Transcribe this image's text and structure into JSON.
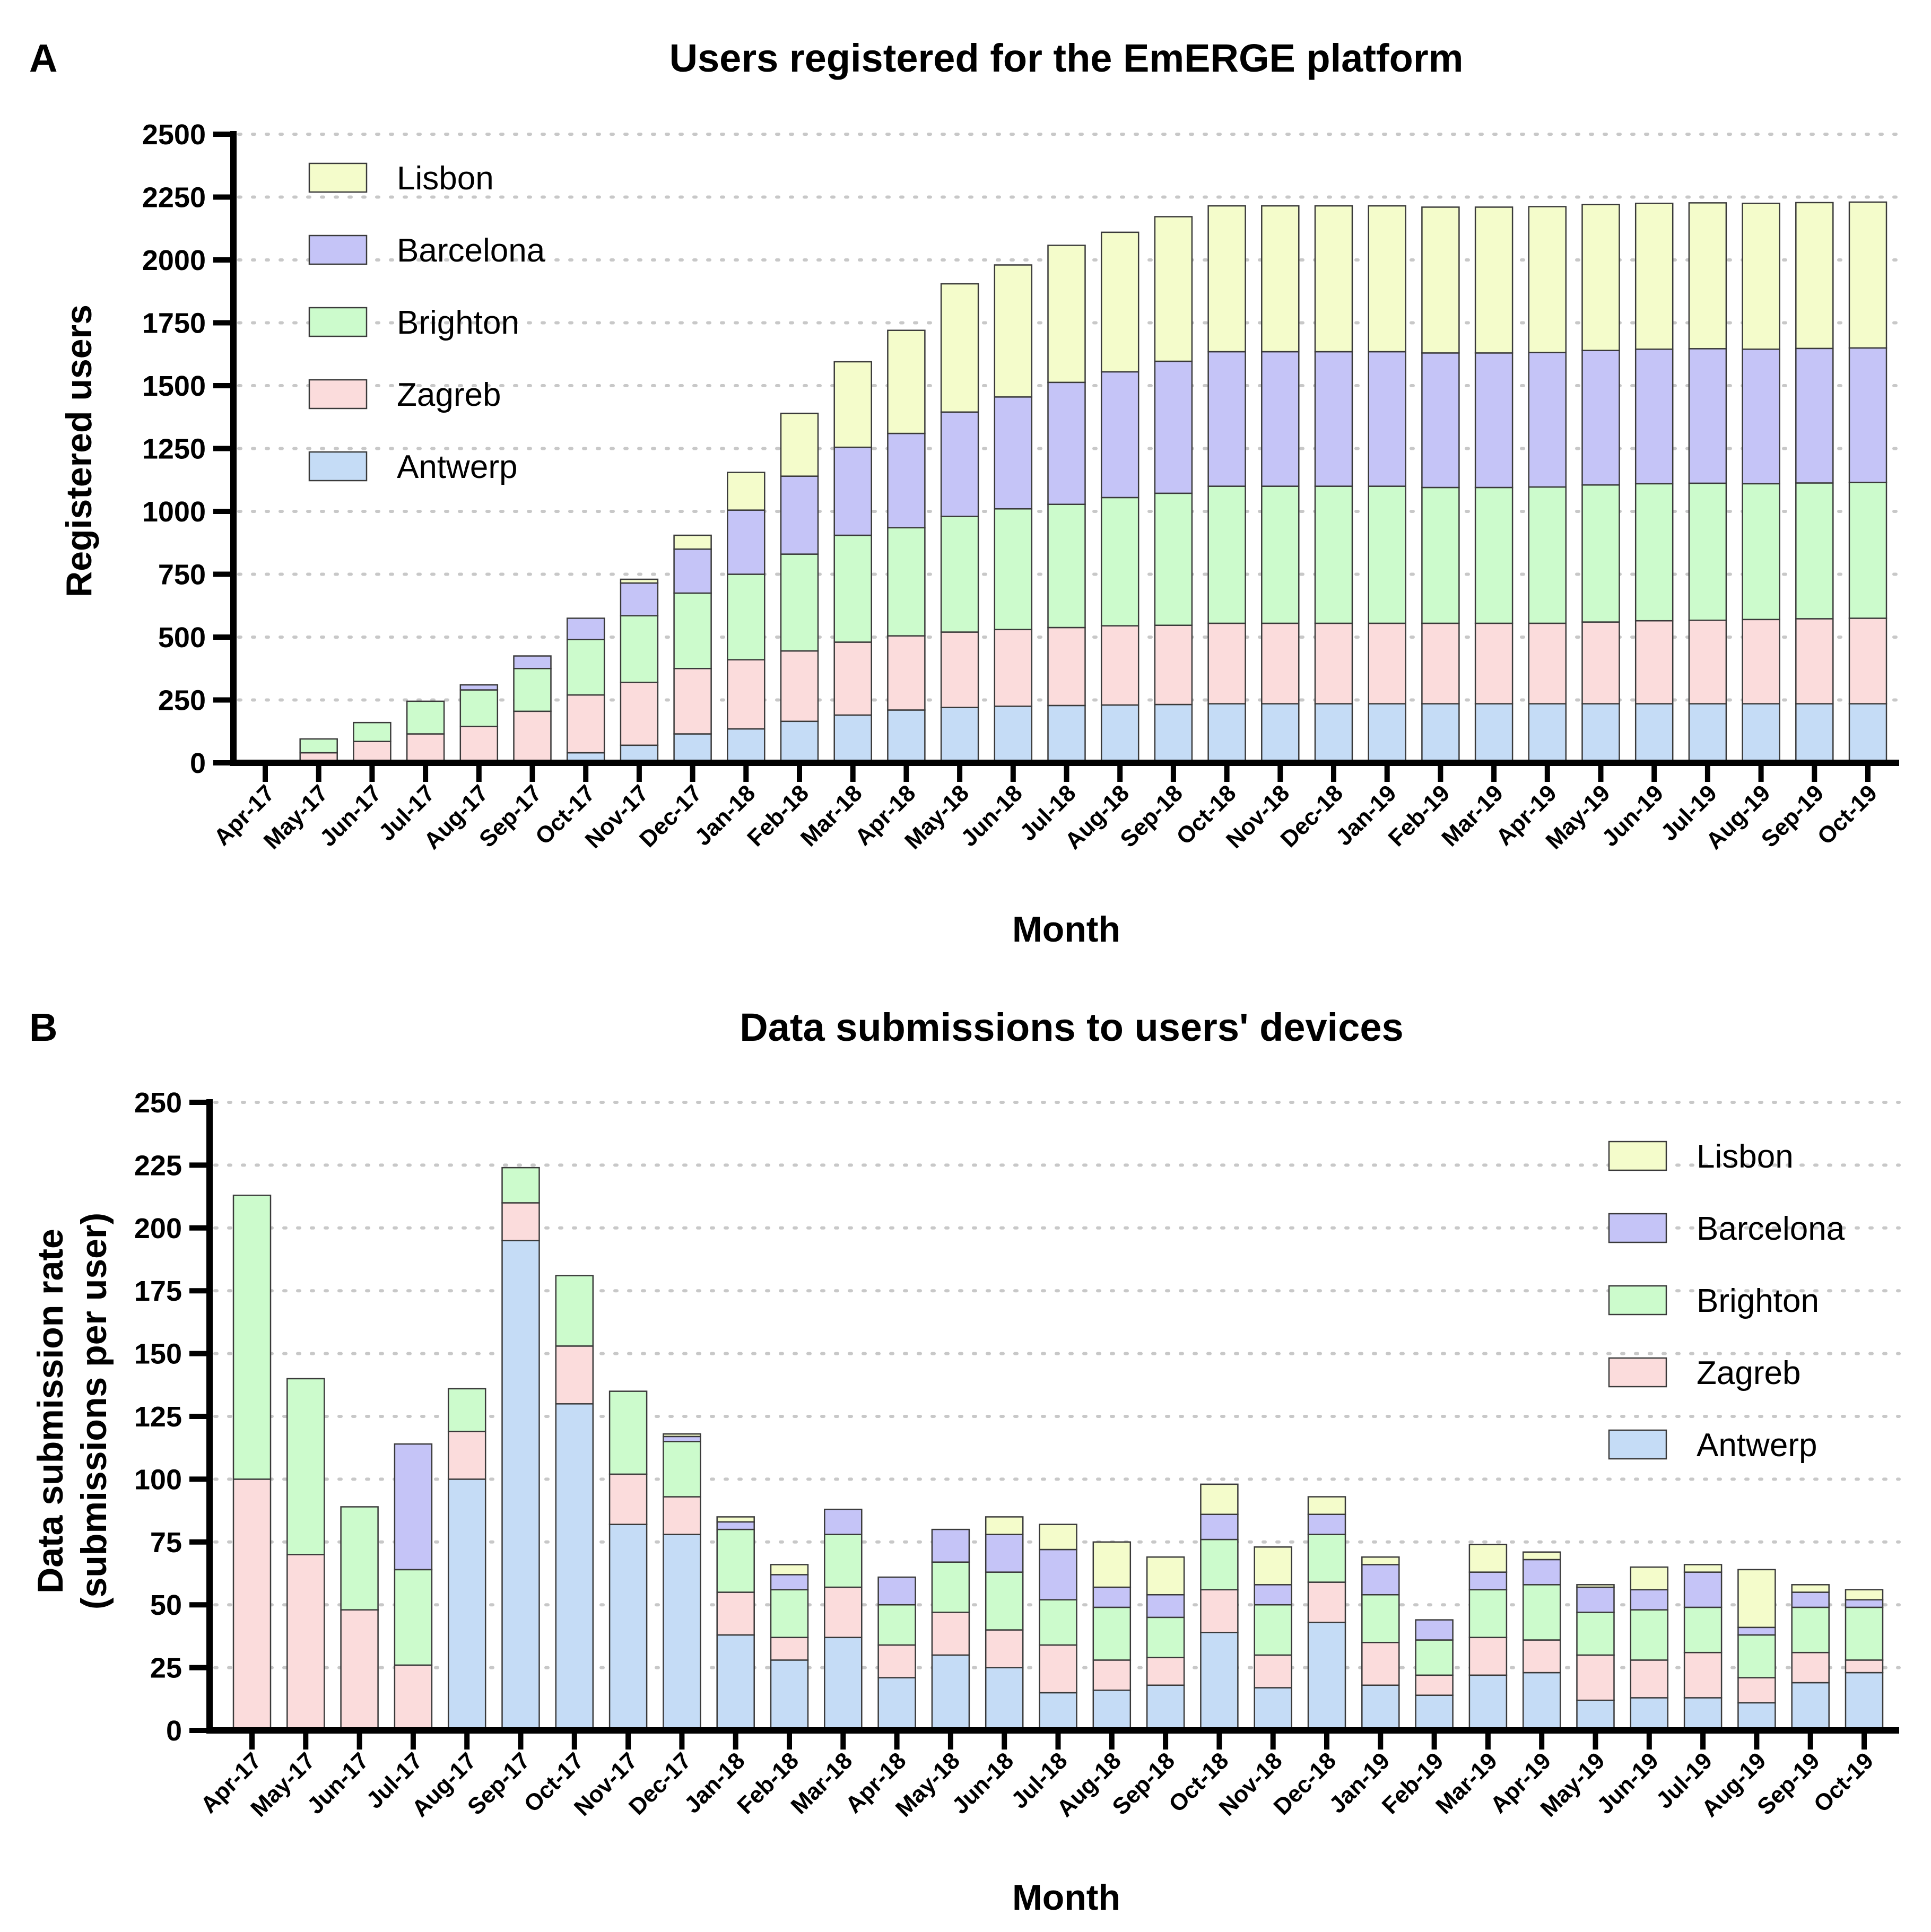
{
  "chart_data": [
    {
      "panel": "A",
      "type": "bar",
      "stacked": true,
      "title": "Users registered for the EmERGE platform",
      "xlabel": "Month",
      "ylabel": "Registered users",
      "ylim": [
        0,
        2500
      ],
      "yticks": [
        0,
        250,
        500,
        750,
        1000,
        1250,
        1500,
        1750,
        2000,
        2250,
        2500
      ],
      "legend_position": "top-left",
      "categories": [
        "Apr-17",
        "May-17",
        "Jun-17",
        "Jul-17",
        "Aug-17",
        "Sep-17",
        "Oct-17",
        "Nov-17",
        "Dec-17",
        "Jan-18",
        "Feb-18",
        "Mar-18",
        "Apr-18",
        "May-18",
        "Jun-18",
        "Jul-18",
        "Aug-18",
        "Sep-18",
        "Oct-18",
        "Nov-18",
        "Dec-18",
        "Jan-19",
        "Feb-19",
        "Mar-19",
        "Apr-19",
        "May-19",
        "Jun-19",
        "Jul-19",
        "Aug-19",
        "Sep-19",
        "Oct-19"
      ],
      "series": [
        {
          "name": "Antwerp",
          "color": "#c5dcf6",
          "values": [
            0,
            0,
            0,
            0,
            0,
            10,
            40,
            70,
            115,
            135,
            165,
            190,
            210,
            220,
            225,
            228,
            230,
            232,
            235,
            235,
            235,
            235,
            235,
            235,
            235,
            235,
            235,
            235,
            235,
            235,
            235
          ]
        },
        {
          "name": "Zagreb",
          "color": "#fbdcdc",
          "values": [
            0,
            40,
            85,
            115,
            145,
            195,
            230,
            250,
            260,
            275,
            280,
            290,
            295,
            300,
            305,
            310,
            315,
            315,
            320,
            320,
            320,
            320,
            320,
            320,
            320,
            325,
            330,
            332,
            335,
            338,
            340
          ]
        },
        {
          "name": "Brighton",
          "color": "#ccfbcc",
          "values": [
            0,
            55,
            75,
            130,
            145,
            170,
            220,
            265,
            300,
            340,
            385,
            425,
            430,
            460,
            480,
            490,
            510,
            525,
            545,
            545,
            545,
            545,
            540,
            540,
            542,
            545,
            545,
            545,
            540,
            540,
            540
          ]
        },
        {
          "name": "Barcelona",
          "color": "#c5c4f7",
          "values": [
            0,
            0,
            0,
            0,
            20,
            50,
            85,
            130,
            175,
            255,
            310,
            350,
            375,
            415,
            445,
            485,
            500,
            525,
            535,
            535,
            535,
            535,
            535,
            535,
            535,
            535,
            535,
            535,
            535,
            535,
            535
          ]
        },
        {
          "name": "Lisbon",
          "color": "#f4fccb",
          "values": [
            0,
            0,
            0,
            0,
            0,
            0,
            0,
            15,
            55,
            150,
            250,
            340,
            410,
            510,
            525,
            545,
            555,
            575,
            580,
            580,
            580,
            580,
            580,
            580,
            580,
            580,
            580,
            580,
            580,
            580,
            580
          ]
        }
      ]
    },
    {
      "panel": "B",
      "type": "bar",
      "stacked": true,
      "title": "Data submissions to users' devices",
      "xlabel": "Month",
      "ylabel": "Data submission rate",
      "ylabel2": "(submissions per user)",
      "ylim": [
        0,
        250
      ],
      "yticks": [
        0,
        25,
        50,
        75,
        100,
        125,
        150,
        175,
        200,
        225,
        250
      ],
      "legend_position": "top-right",
      "categories": [
        "Apr-17",
        "May-17",
        "Jun-17",
        "Jul-17",
        "Aug-17",
        "Sep-17",
        "Oct-17",
        "Nov-17",
        "Dec-17",
        "Jan-18",
        "Feb-18",
        "Mar-18",
        "Apr-18",
        "May-18",
        "Jun-18",
        "Jul-18",
        "Aug-18",
        "Sep-18",
        "Oct-18",
        "Nov-18",
        "Dec-18",
        "Jan-19",
        "Feb-19",
        "Mar-19",
        "Apr-19",
        "May-19",
        "Jun-19",
        "Jul-19",
        "Aug-19",
        "Sep-19",
        "Oct-19"
      ],
      "series": [
        {
          "name": "Antwerp",
          "color": "#c5dcf6",
          "values": [
            0,
            0,
            0,
            0,
            100,
            195,
            130,
            82,
            78,
            38,
            28,
            37,
            21,
            30,
            25,
            15,
            16,
            18,
            39,
            17,
            43,
            18,
            14,
            22,
            23,
            12,
            13,
            13,
            11,
            19,
            23
          ]
        },
        {
          "name": "Zagreb",
          "color": "#fbdcdc",
          "values": [
            100,
            70,
            48,
            26,
            19,
            15,
            23,
            20,
            15,
            17,
            9,
            20,
            13,
            17,
            15,
            19,
            12,
            11,
            17,
            13,
            16,
            17,
            8,
            15,
            13,
            18,
            15,
            18,
            10,
            12,
            5
          ]
        },
        {
          "name": "Brighton",
          "color": "#ccfbcc",
          "values": [
            113,
            70,
            41,
            38,
            17,
            14,
            28,
            33,
            22,
            25,
            19,
            21,
            16,
            20,
            23,
            18,
            21,
            16,
            20,
            20,
            19,
            19,
            14,
            19,
            22,
            17,
            20,
            18,
            17,
            18,
            21
          ]
        },
        {
          "name": "Barcelona",
          "color": "#c5c4f7",
          "values": [
            0,
            0,
            0,
            50,
            0,
            0,
            0,
            0,
            2,
            3,
            6,
            10,
            11,
            13,
            15,
            20,
            8,
            9,
            10,
            8,
            8,
            12,
            8,
            7,
            10,
            10,
            8,
            14,
            3,
            6,
            3
          ]
        },
        {
          "name": "Lisbon",
          "color": "#f4fccb",
          "values": [
            0,
            0,
            0,
            0,
            0,
            0,
            0,
            0,
            1,
            2,
            4,
            0,
            0,
            0,
            7,
            10,
            18,
            15,
            12,
            15,
            7,
            3,
            0,
            11,
            3,
            1,
            9,
            3,
            23,
            3,
            4
          ]
        }
      ]
    }
  ]
}
